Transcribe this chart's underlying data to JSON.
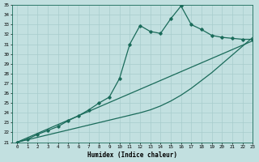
{
  "xlabel": "Humidex (Indice chaleur)",
  "ylabel": "",
  "bg_color": "#c2e0e0",
  "grid_color": "#a8cccc",
  "line_color": "#1a6b5a",
  "ylim": [
    21,
    35
  ],
  "xlim": [
    -0.5,
    23
  ],
  "yticks": [
    21,
    22,
    23,
    24,
    25,
    26,
    27,
    28,
    29,
    30,
    31,
    32,
    33,
    34,
    35
  ],
  "xticks": [
    0,
    1,
    2,
    3,
    4,
    5,
    6,
    7,
    8,
    9,
    10,
    11,
    12,
    13,
    14,
    15,
    16,
    17,
    18,
    19,
    20,
    21,
    22,
    23
  ],
  "straight1_x": [
    0,
    1,
    2,
    3,
    4,
    5,
    6,
    7,
    8,
    9,
    10,
    11,
    12,
    13,
    14,
    15,
    16,
    17,
    18,
    19,
    20,
    21,
    22,
    23
  ],
  "straight1_y": [
    21.0,
    21.45,
    21.9,
    22.35,
    22.8,
    23.25,
    23.7,
    24.15,
    24.6,
    25.05,
    25.5,
    25.95,
    26.4,
    26.85,
    27.3,
    27.75,
    28.2,
    28.65,
    29.1,
    29.55,
    30.0,
    30.45,
    30.9,
    31.35
  ],
  "straight2_x": [
    0,
    1,
    2,
    3,
    4,
    5,
    6,
    7,
    8,
    9,
    10,
    11,
    12,
    13,
    14,
    15,
    16,
    17,
    18,
    19,
    20,
    21,
    22,
    23
  ],
  "straight2_y": [
    21.0,
    21.25,
    21.5,
    21.75,
    22.0,
    22.25,
    22.5,
    22.75,
    23.0,
    23.25,
    23.5,
    23.75,
    24.0,
    24.3,
    24.7,
    25.2,
    25.8,
    26.5,
    27.3,
    28.1,
    29.0,
    29.9,
    30.8,
    31.7
  ],
  "marker_x": [
    0,
    1,
    2,
    3,
    4,
    5,
    6,
    7,
    8,
    9,
    10,
    11,
    12,
    13,
    14,
    15,
    16,
    17,
    18,
    19,
    20,
    21,
    22,
    23
  ],
  "marker_y": [
    21.0,
    21.3,
    21.8,
    22.2,
    22.6,
    23.2,
    23.7,
    24.3,
    25.0,
    25.6,
    27.5,
    31.0,
    32.9,
    32.3,
    32.1,
    33.6,
    34.9,
    33.0,
    32.5,
    31.9,
    31.7,
    31.6,
    31.5,
    31.5
  ]
}
